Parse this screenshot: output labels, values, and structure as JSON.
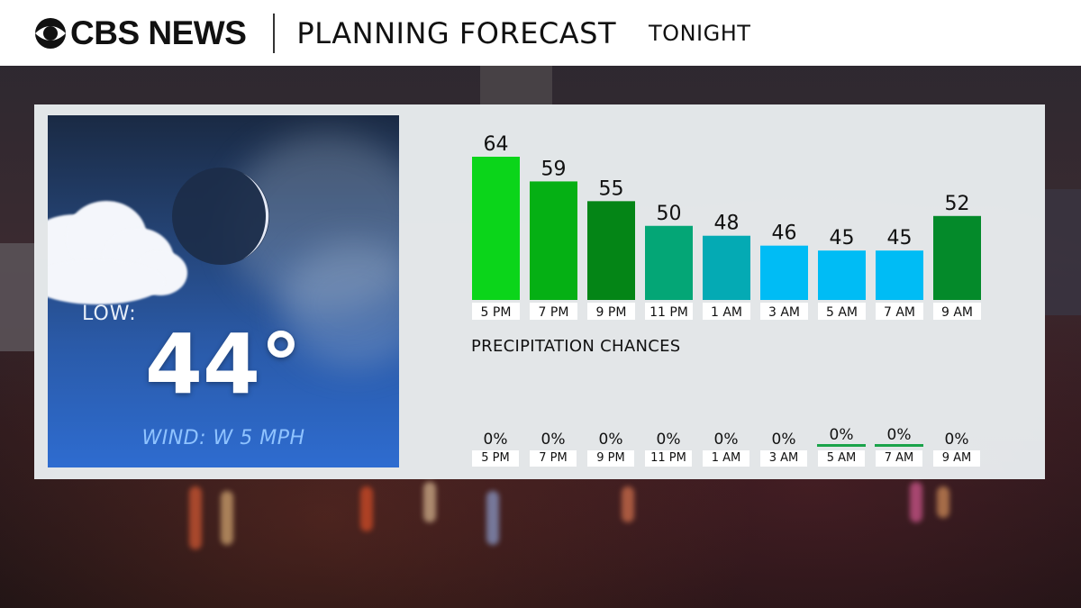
{
  "header": {
    "logo_text": "CBS NEWS",
    "title": "PLANNING FORECAST",
    "subtitle": "TONIGHT"
  },
  "card": {
    "low_label": "LOW:",
    "low_value": "44°",
    "wind": "WIND: W 5 MPH",
    "icon": "moon-cloud-icon"
  },
  "chart_data": {
    "type": "bar",
    "categories": [
      "5 PM",
      "7 PM",
      "9 PM",
      "11 PM",
      "1 AM",
      "3 AM",
      "5 AM",
      "7 AM",
      "9 AM"
    ],
    "values": [
      64,
      59,
      55,
      50,
      48,
      46,
      45,
      45,
      52
    ],
    "labels": [
      "64",
      "59",
      "55",
      "50",
      "48",
      "46",
      "45",
      "45",
      "52"
    ],
    "colors": [
      "#0bd51a",
      "#05b014",
      "#048516",
      "#04a676",
      "#04aab4",
      "#00bcf5",
      "#00bcf5",
      "#00bcf5",
      "#048a2a"
    ],
    "ylim": [
      35,
      66
    ],
    "title": "",
    "xlabel": "",
    "ylabel": ""
  },
  "precip": {
    "title": "PRECIPITATION CHANCES",
    "items": [
      {
        "time": "5 PM",
        "value": "0%"
      },
      {
        "time": "7 PM",
        "value": "0%"
      },
      {
        "time": "9 PM",
        "value": "0%"
      },
      {
        "time": "11 PM",
        "value": "0%"
      },
      {
        "time": "1 AM",
        "value": "0%"
      },
      {
        "time": "3 AM",
        "value": "0%"
      },
      {
        "time": "5 AM",
        "value": "0%"
      },
      {
        "time": "7 AM",
        "value": "0%"
      },
      {
        "time": "9 AM",
        "value": "0%"
      }
    ]
  }
}
